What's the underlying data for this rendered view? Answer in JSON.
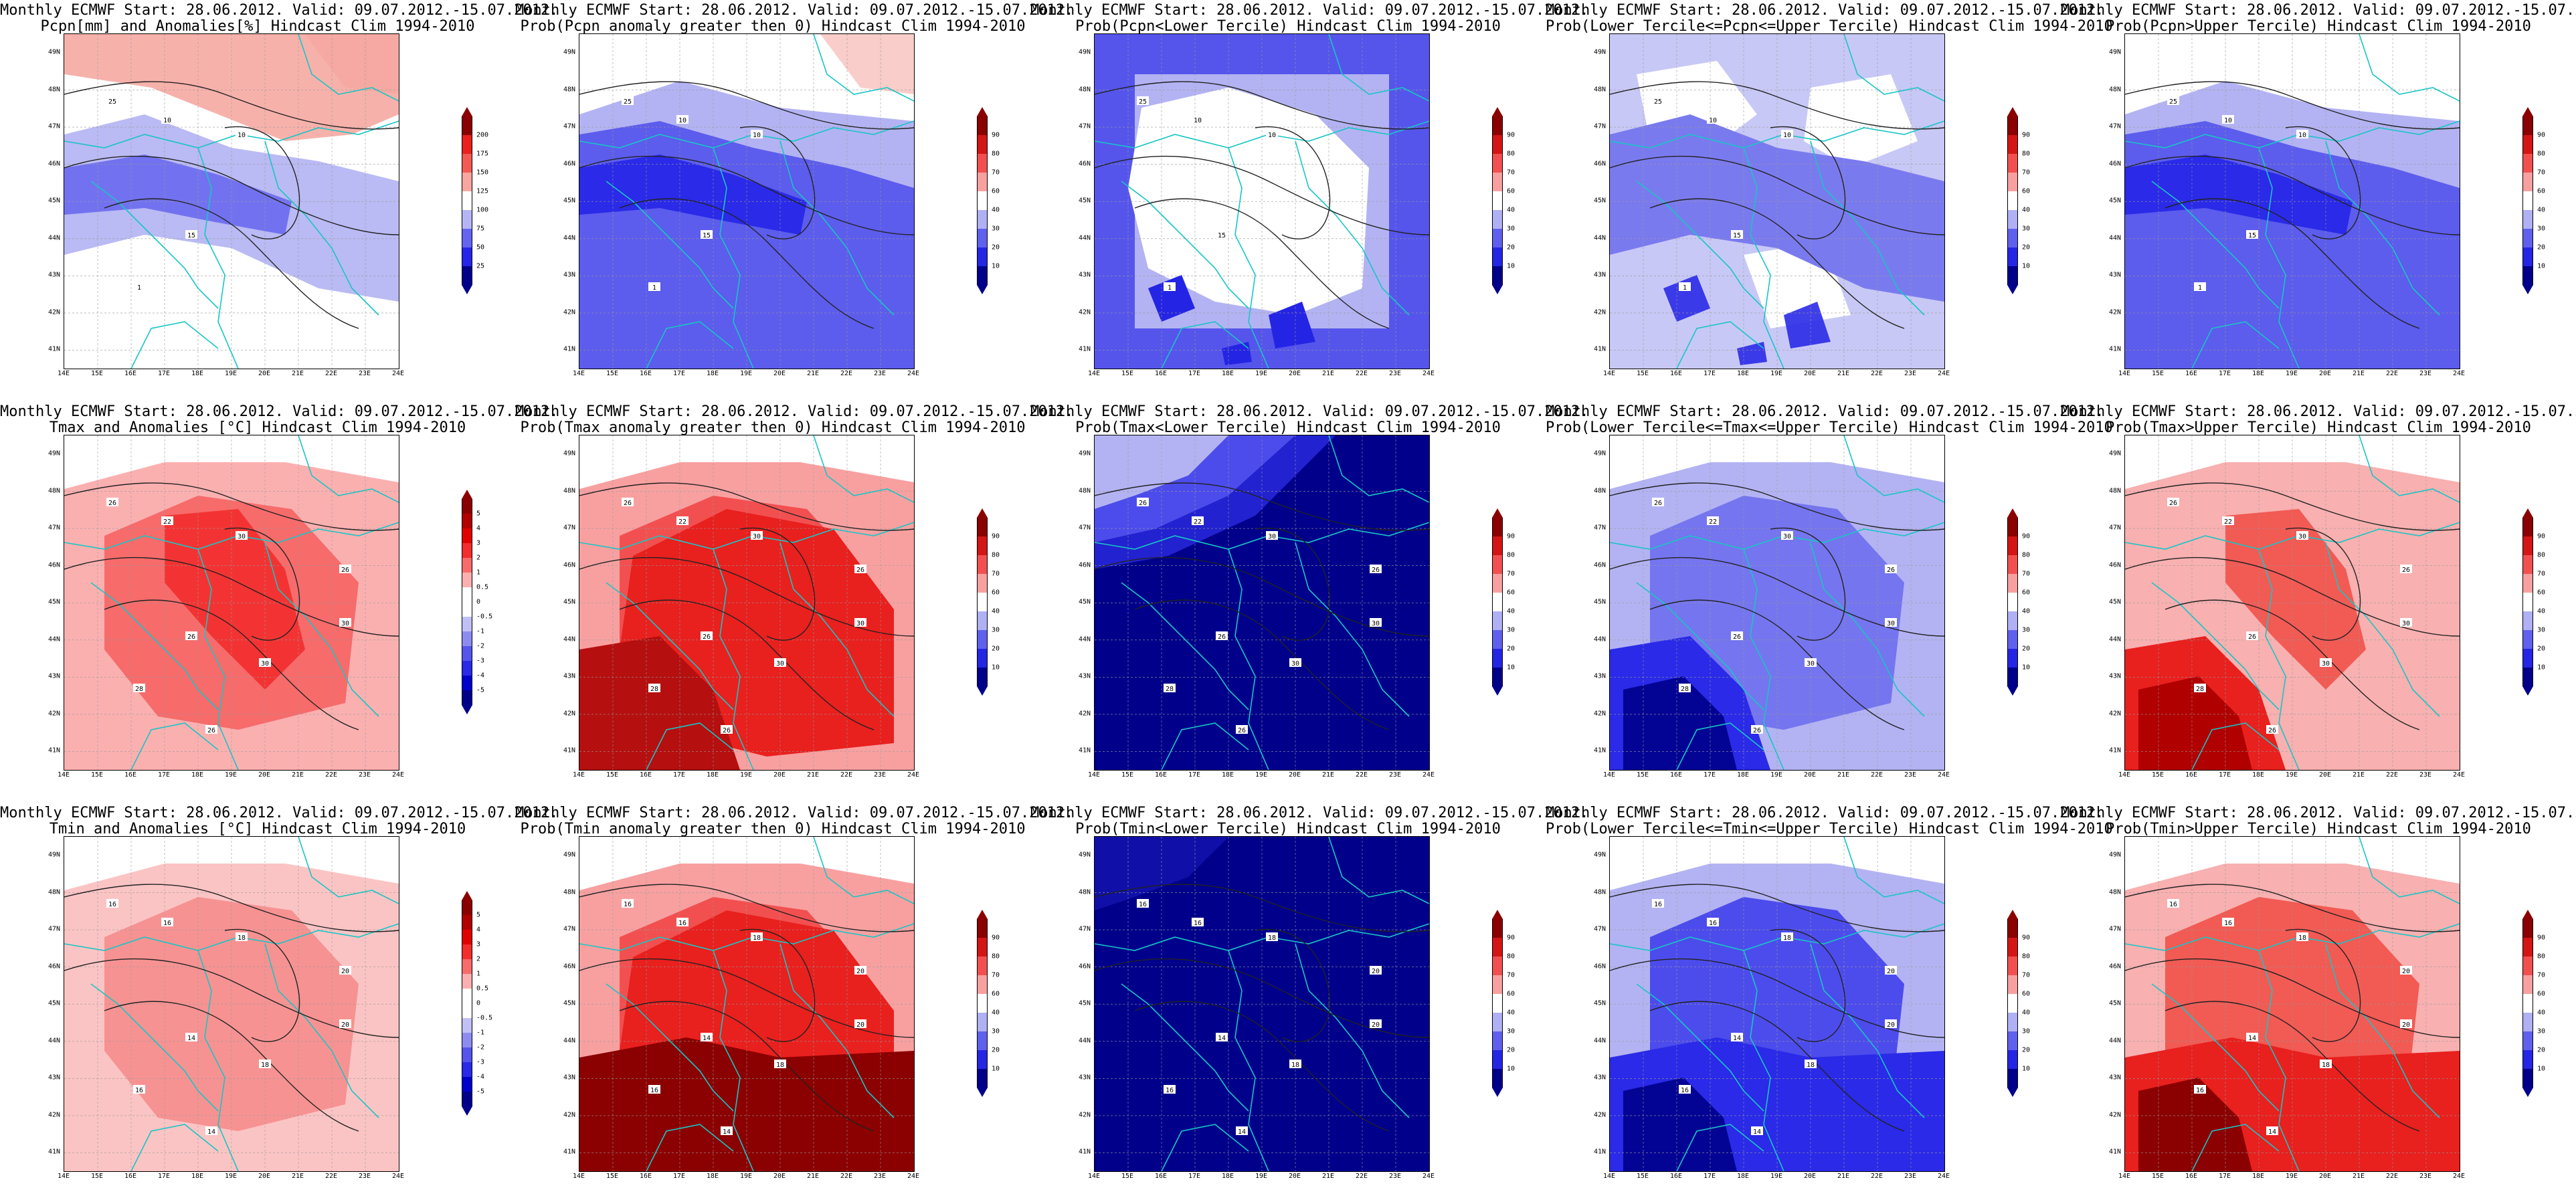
{
  "header_line": "Monthly ECMWF Start: 28.06.2012. Valid: 09.07.2012.-15.07.2012.",
  "lat_ticks": [
    "49N",
    "48N",
    "47N",
    "46N",
    "45N",
    "44N",
    "43N",
    "42N",
    "41N"
  ],
  "lon_ticks": [
    "14E",
    "15E",
    "16E",
    "17E",
    "18E",
    "19E",
    "20E",
    "21E",
    "22E",
    "23E",
    "24E"
  ],
  "scales": {
    "pcpn": {
      "labels": [
        "200",
        "175",
        "150",
        "125",
        "100",
        "75",
        "50",
        "25"
      ],
      "colors": [
        "#8b0000",
        "#e8201e",
        "#f25a54",
        "#f8a6a0",
        "#ffffff",
        "#b5b5f5",
        "#6464f0",
        "#2626e8",
        "#00008b"
      ]
    },
    "temp": {
      "labels": [
        "5",
        "4",
        "3",
        "2",
        "1",
        "0.5",
        "0",
        "-0.5",
        "-1",
        "-2",
        "-3",
        "-4",
        "-5"
      ],
      "colors": [
        "#8b0000",
        "#b20000",
        "#e00000",
        "#f22d2d",
        "#f76b6b",
        "#fbb0b0",
        "#ffffff",
        "#ffffff",
        "#c0c0f5",
        "#8c8cf0",
        "#5555ec",
        "#2a2ae6",
        "#0000cc",
        "#00008b"
      ]
    },
    "prob": {
      "labels": [
        "90",
        "80",
        "70",
        "60",
        "40",
        "30",
        "20",
        "10"
      ],
      "colors": [
        "#8b0000",
        "#d41515",
        "#f25050",
        "#f8a0a0",
        "#ffffff",
        "#b0b0f5",
        "#6060ee",
        "#2525e4",
        "#00008b"
      ]
    }
  },
  "panels": [
    {
      "id": "p1",
      "row": 0,
      "col": 0,
      "subtitle": "Pcpn[mm] and Anomalies[%] Hindcast Clim 1994-2010",
      "scale": "pcpn",
      "theme": "mixed_pcpn",
      "contour_labels": [
        "25",
        "10",
        "10",
        "15",
        "1"
      ]
    },
    {
      "id": "p2",
      "row": 0,
      "col": 1,
      "subtitle": "Prob(Pcpn anomaly greater then 0) Hindcast Clim 1994-2010",
      "scale": "prob",
      "theme": "blue_mid",
      "contour_labels": [
        "25",
        "10",
        "10",
        "15",
        "1"
      ]
    },
    {
      "id": "p3",
      "row": 0,
      "col": 2,
      "subtitle": "Prob(Pcpn<Lower Tercile) Hindcast Clim 1994-2010",
      "scale": "prob",
      "theme": "blue_white",
      "contour_labels": [
        "25",
        "10",
        "10",
        "15",
        "1"
      ]
    },
    {
      "id": "p4",
      "row": 0,
      "col": 3,
      "subtitle": "Prob(Lower Tercile<=Pcpn<=Upper Tercile) Hindcast Clim 1994-2010",
      "scale": "prob",
      "theme": "blue_light",
      "contour_labels": [
        "25",
        "10",
        "10",
        "15",
        "1"
      ]
    },
    {
      "id": "p5",
      "row": 0,
      "col": 4,
      "subtitle": "Prob(Pcpn>Upper Tercile) Hindcast Clim 1994-2010",
      "scale": "prob",
      "theme": "blue_mid2",
      "contour_labels": [
        "25",
        "10",
        "10",
        "15",
        "1"
      ]
    },
    {
      "id": "p6",
      "row": 1,
      "col": 0,
      "subtitle": "Tmax and Anomalies [°C] Hindcast Clim 1994-2010",
      "scale": "temp",
      "theme": "red_light",
      "contour_labels": [
        "26",
        "22",
        "30",
        "26",
        "28",
        "30",
        "26",
        "30",
        "26"
      ]
    },
    {
      "id": "p7",
      "row": 1,
      "col": 1,
      "subtitle": "Prob(Tmax anomaly greater then 0) Hindcast Clim 1994-2010",
      "scale": "prob",
      "theme": "red_strong",
      "contour_labels": [
        "26",
        "22",
        "30",
        "26",
        "28",
        "30",
        "26",
        "30",
        "26"
      ]
    },
    {
      "id": "p8",
      "row": 1,
      "col": 2,
      "subtitle": "Prob(Tmax<Lower Tercile) Hindcast Clim 1994-2010",
      "scale": "prob",
      "theme": "navy",
      "contour_labels": [
        "26",
        "22",
        "30",
        "26",
        "28",
        "30",
        "26",
        "30",
        "26"
      ]
    },
    {
      "id": "p9",
      "row": 1,
      "col": 3,
      "subtitle": "Prob(Lower Tercile<=Tmax<=Upper Tercile) Hindcast Clim 1994-2010",
      "scale": "prob",
      "theme": "blue_mix",
      "contour_labels": [
        "26",
        "22",
        "30",
        "26",
        "28",
        "30",
        "26",
        "30",
        "26"
      ]
    },
    {
      "id": "p10",
      "row": 1,
      "col": 4,
      "subtitle": "Prob(Tmax>Upper Tercile) Hindcast Clim 1994-2010",
      "scale": "prob",
      "theme": "red_mid",
      "contour_labels": [
        "26",
        "22",
        "30",
        "26",
        "28",
        "30",
        "26",
        "30",
        "26"
      ]
    },
    {
      "id": "p11",
      "row": 2,
      "col": 0,
      "subtitle": "Tmin and Anomalies [°C] Hindcast Clim 1994-2010",
      "scale": "temp",
      "theme": "red_pale",
      "contour_labels": [
        "16",
        "16",
        "18",
        "14",
        "16",
        "18",
        "14",
        "20",
        "20"
      ]
    },
    {
      "id": "p12",
      "row": 2,
      "col": 1,
      "subtitle": "Prob(Tmin anomaly greater then 0) Hindcast Clim 1994-2010",
      "scale": "prob",
      "theme": "red_dark",
      "contour_labels": [
        "16",
        "16",
        "18",
        "14",
        "16",
        "18",
        "14",
        "20",
        "20"
      ]
    },
    {
      "id": "p13",
      "row": 2,
      "col": 2,
      "subtitle": "Prob(Tmin<Lower Tercile) Hindcast Clim 1994-2010",
      "scale": "prob",
      "theme": "navy_full",
      "contour_labels": [
        "16",
        "16",
        "18",
        "14",
        "16",
        "18",
        "14",
        "20",
        "20"
      ]
    },
    {
      "id": "p14",
      "row": 2,
      "col": 3,
      "subtitle": "Prob(Lower Tercile<=Tmin<=Upper Tercile) Hindcast Clim 1994-2010",
      "scale": "prob",
      "theme": "blue_deep",
      "contour_labels": [
        "16",
        "16",
        "18",
        "14",
        "16",
        "18",
        "14",
        "20",
        "20"
      ]
    },
    {
      "id": "p15",
      "row": 2,
      "col": 4,
      "subtitle": "Prob(Tmin>Upper Tercile) Hindcast Clim 1994-2010",
      "scale": "prob",
      "theme": "red_mid2",
      "contour_labels": [
        "16",
        "16",
        "18",
        "14",
        "16",
        "18",
        "14",
        "20",
        "20"
      ]
    }
  ]
}
